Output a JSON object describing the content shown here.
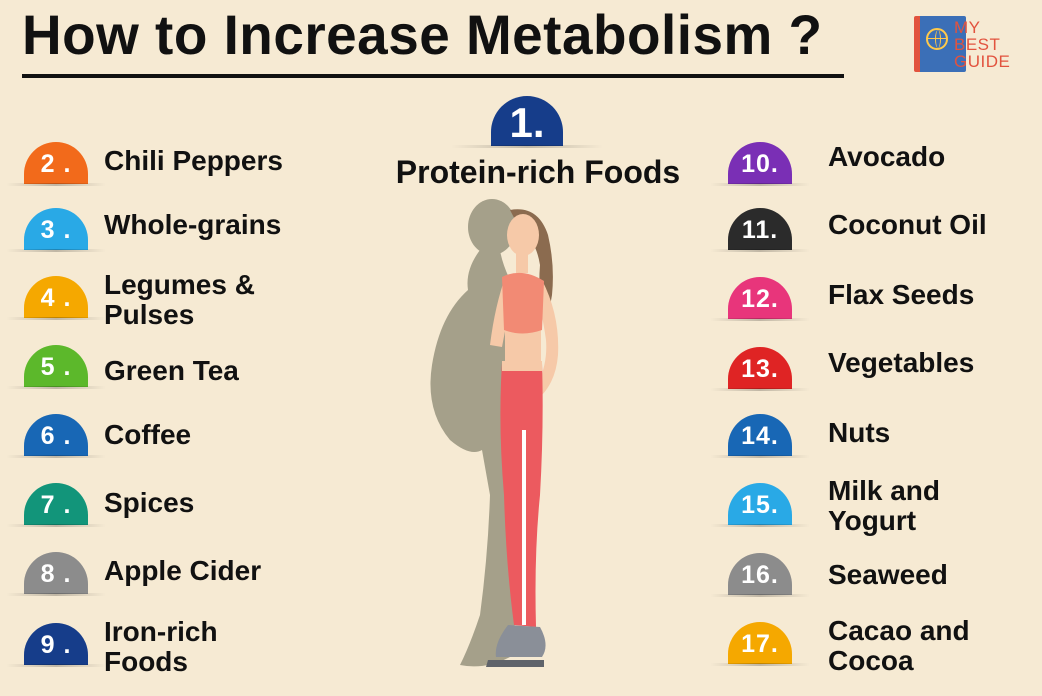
{
  "title": "How to Increase Metabolism ?",
  "logo": {
    "line1": "MY",
    "line2": "BEST",
    "line3": "GUIDE"
  },
  "featured": {
    "number": "1.",
    "label": "Protein-rich Foods",
    "color": "#163d8a"
  },
  "left_items": [
    {
      "number": "2 .",
      "label_lines": [
        "Chili Peppers"
      ],
      "color": "#f26a1b"
    },
    {
      "number": "3 .",
      "label_lines": [
        "Whole-grains"
      ],
      "color": "#29a9e6"
    },
    {
      "number": "4 .",
      "label_lines": [
        "Legumes &",
        "Pulses"
      ],
      "color": "#f5a800"
    },
    {
      "number": "5 .",
      "label_lines": [
        "Green Tea"
      ],
      "color": "#5cb82b"
    },
    {
      "number": "6 .",
      "label_lines": [
        "Coffee"
      ],
      "color": "#1867b5"
    },
    {
      "number": "7 .",
      "label_lines": [
        "Spices"
      ],
      "color": "#12957a"
    },
    {
      "number": "8 .",
      "label_lines": [
        "Apple Cider"
      ],
      "color": "#8c8c8c"
    },
    {
      "number": "9 .",
      "label_lines": [
        "Iron-rich",
        "Foods"
      ],
      "color": "#163d8a"
    }
  ],
  "right_items": [
    {
      "number": "10.",
      "label_lines": [
        "Avocado"
      ],
      "color": "#7a2fb5"
    },
    {
      "number": "11.",
      "label_lines": [
        "Coconut Oil"
      ],
      "color": "#2b2b2b"
    },
    {
      "number": "12.",
      "label_lines": [
        "Flax Seeds"
      ],
      "color": "#e8357b"
    },
    {
      "number": "13.",
      "label_lines": [
        "Vegetables"
      ],
      "color": "#df2424"
    },
    {
      "number": "14.",
      "label_lines": [
        "Nuts"
      ],
      "color": "#1867b5"
    },
    {
      "number": "15.",
      "label_lines": [
        "Milk and",
        "Yogurt"
      ],
      "color": "#29a9e6"
    },
    {
      "number": "16.",
      "label_lines": [
        "Seaweed"
      ],
      "color": "#8c8c8c"
    },
    {
      "number": "17.",
      "label_lines": [
        "Cacao and",
        "Cocoa"
      ],
      "color": "#f5a800"
    }
  ]
}
